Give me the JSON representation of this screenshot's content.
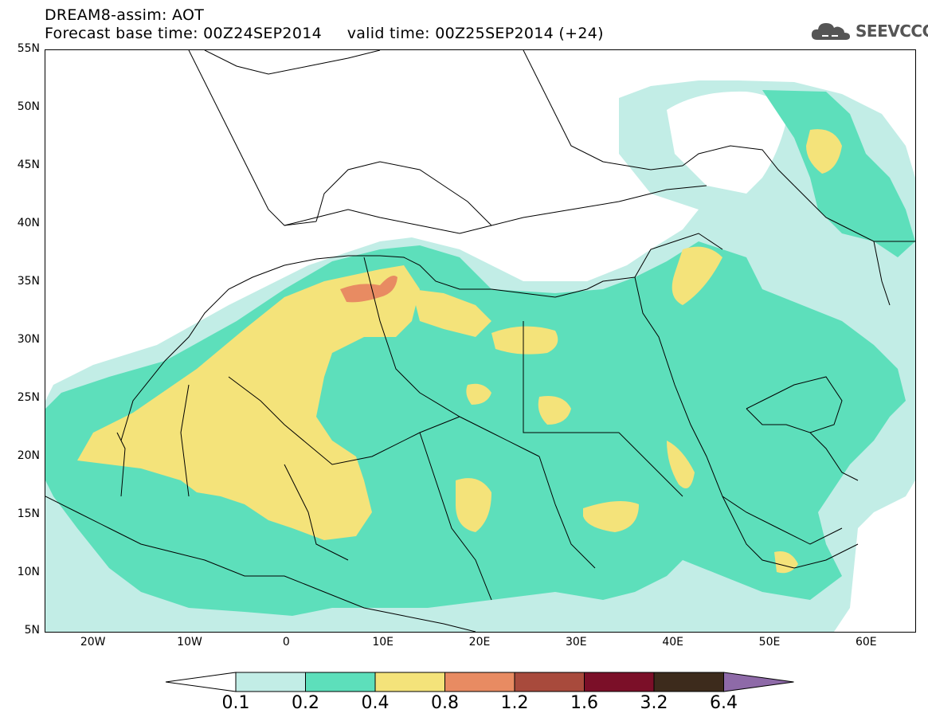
{
  "header": {
    "title": "DREAM8-assim: AOT",
    "base_time_label": "Forecast base time: 00Z24SEP2014",
    "valid_time_label": "valid time: 00Z25SEP2014 (+24)"
  },
  "logo": {
    "icon": "cloud-icon",
    "text": "SEEVCCC"
  },
  "map": {
    "lat_range": [
      5,
      55
    ],
    "lon_range": [
      -25,
      65
    ],
    "lat_labels": [
      "55N",
      "50N",
      "45N",
      "40N",
      "35N",
      "30N",
      "25N",
      "20N",
      "15N",
      "10N",
      "5N"
    ],
    "lon_labels": [
      "20W",
      "10W",
      "0",
      "10E",
      "20E",
      "30E",
      "40E",
      "50E",
      "60E"
    ]
  },
  "legend": {
    "levels": [
      "0.1",
      "0.2",
      "0.4",
      "0.8",
      "1.2",
      "1.6",
      "3.2",
      "6.4"
    ],
    "colors": [
      "#ffffff",
      "#c2ede6",
      "#5ddfbb",
      "#f4e37a",
      "#e88b62",
      "#a84a3c",
      "#7b0f28",
      "#3d2b1c",
      "#8e6aa8"
    ]
  },
  "colors": {
    "c1": "#c2ede6",
    "c2": "#5ddfbb",
    "c3": "#f4e37a",
    "c4": "#e88b62",
    "border": "#000000"
  }
}
